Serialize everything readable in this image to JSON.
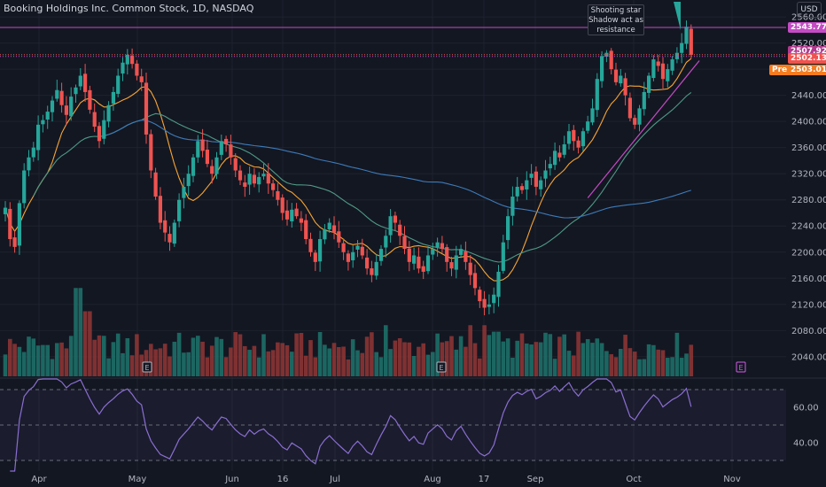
{
  "header": {
    "title": "Booking Holdings Inc. Common Stock, 1D, NASDAQ",
    "currency": "USD"
  },
  "annotation": {
    "lines": [
      "Shooting star",
      "Shadow act as",
      "resistance"
    ]
  },
  "price_tags": {
    "resistance": "2543.77",
    "high": "2507.92",
    "last": "2502.13",
    "pre_label": "Pre",
    "pre_value": "2503.01"
  },
  "colors": {
    "background": "#131722",
    "up": "#26a69a",
    "down": "#ef5350",
    "resistance": "#c44bc4",
    "ma_fast": "#f7a534",
    "ma_mid": "#4f9a86",
    "ma_slow": "#3d7ab8",
    "rsi": "#8a6fd1",
    "pre": "#f57c1f"
  },
  "earnings_marker": "E",
  "chart_data": [
    {
      "type": "candlestick",
      "y_ticks": [
        2040,
        2080,
        2120,
        2160,
        2200,
        2240,
        2280,
        2320,
        2360,
        2400,
        2440,
        2480,
        2520,
        2560
      ],
      "ylim": [
        2010,
        2575
      ],
      "x_labels": [
        "Apr",
        "May",
        "Jun",
        "16",
        "Jul",
        "Aug",
        "17",
        "Sep",
        "Oct",
        "Nov"
      ],
      "resistance_level": 2543.77,
      "price_line": 2502.13,
      "closes": [
        2268,
        2220,
        2208,
        2275,
        2325,
        2345,
        2360,
        2395,
        2402,
        2415,
        2432,
        2448,
        2425,
        2410,
        2438,
        2452,
        2470,
        2445,
        2418,
        2392,
        2370,
        2402,
        2425,
        2445,
        2470,
        2490,
        2502,
        2488,
        2470,
        2460,
        2380,
        2325,
        2285,
        2245,
        2230,
        2215,
        2245,
        2280,
        2300,
        2320,
        2345,
        2370,
        2355,
        2335,
        2320,
        2345,
        2370,
        2365,
        2345,
        2325,
        2310,
        2300,
        2320,
        2305,
        2315,
        2320,
        2305,
        2295,
        2280,
        2260,
        2250,
        2265,
        2255,
        2245,
        2220,
        2200,
        2185,
        2220,
        2235,
        2245,
        2230,
        2215,
        2200,
        2185,
        2200,
        2210,
        2195,
        2175,
        2165,
        2185,
        2205,
        2225,
        2255,
        2245,
        2225,
        2205,
        2185,
        2195,
        2175,
        2170,
        2195,
        2205,
        2215,
        2205,
        2185,
        2175,
        2195,
        2205,
        2185,
        2165,
        2145,
        2125,
        2115,
        2120,
        2135,
        2170,
        2215,
        2255,
        2285,
        2300,
        2295,
        2310,
        2320,
        2300,
        2310,
        2325,
        2335,
        2355,
        2345,
        2365,
        2385,
        2370,
        2360,
        2385,
        2400,
        2420,
        2465,
        2500,
        2505,
        2480,
        2460,
        2470,
        2440,
        2405,
        2395,
        2420,
        2445,
        2470,
        2495,
        2485,
        2465,
        2480,
        2495,
        2505,
        2520,
        2545,
        2502
      ],
      "volume_ylim": [
        0,
        100
      ],
      "rsi_ticks": [
        40,
        60
      ],
      "rsi_bands": [
        30,
        50,
        70
      ],
      "rsi_ylim": [
        24,
        76
      ]
    }
  ]
}
